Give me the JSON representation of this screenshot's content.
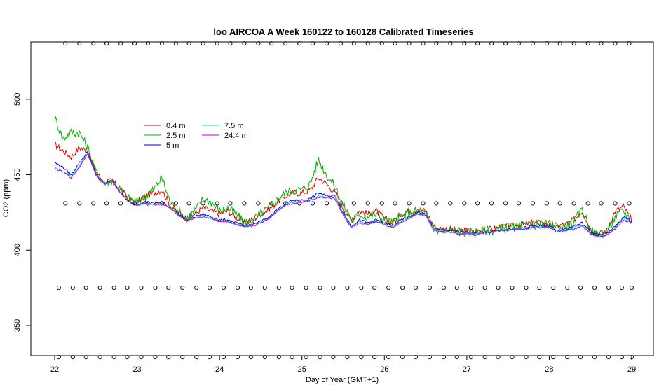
{
  "chart_data": {
    "type": "line",
    "title": "loo AIRCOA A  Week 160122 to 160128  Calibrated Timeseries",
    "xlabel": "Day of Year (GMT+1)",
    "ylabel": "CO2 (ppm)",
    "xlim": [
      22,
      29
    ],
    "ylim": [
      330,
      538
    ],
    "x_ticks": [
      22,
      23,
      24,
      25,
      26,
      27,
      28,
      29
    ],
    "y_ticks": [
      350,
      400,
      450,
      500
    ],
    "grid": false,
    "legend_placement": "top-left",
    "series": [
      {
        "name": "0.4 m",
        "color": "#e00000",
        "x": [
          22.0,
          22.1,
          22.2,
          22.3,
          22.4,
          22.5,
          22.6,
          22.7,
          22.8,
          22.9,
          23.0,
          23.1,
          23.2,
          23.3,
          23.4,
          23.5,
          23.6,
          23.7,
          23.8,
          23.9,
          24.0,
          24.1,
          24.2,
          24.3,
          24.4,
          24.5,
          24.6,
          24.7,
          24.8,
          24.9,
          25.0,
          25.1,
          25.2,
          25.3,
          25.4,
          25.5,
          25.6,
          25.7,
          25.8,
          25.9,
          26.0,
          26.1,
          26.2,
          26.3,
          26.4,
          26.5,
          26.6,
          26.7,
          26.8,
          26.9,
          27.0,
          27.1,
          27.2,
          27.3,
          27.4,
          27.5,
          27.6,
          27.7,
          27.8,
          27.9,
          28.0,
          28.1,
          28.2,
          28.3,
          28.4,
          28.5,
          28.6,
          28.7,
          28.8,
          28.9,
          29.0
        ],
        "values": [
          470,
          466,
          462,
          468,
          466,
          452,
          445,
          446,
          440,
          434,
          432,
          436,
          438,
          440,
          430,
          425,
          421,
          424,
          428,
          426,
          424,
          426,
          422,
          418,
          420,
          424,
          427,
          432,
          436,
          438,
          438,
          440,
          448,
          444,
          438,
          428,
          420,
          426,
          424,
          426,
          421,
          418,
          424,
          426,
          427,
          426,
          416,
          414,
          414,
          413,
          413,
          412,
          413,
          414,
          415,
          416,
          416,
          417,
          418,
          418,
          418,
          416,
          417,
          420,
          426,
          414,
          411,
          413,
          426,
          429,
          420
        ]
      },
      {
        "name": "2.5 m",
        "color": "#00b000",
        "x": [
          22.0,
          22.1,
          22.2,
          22.3,
          22.4,
          22.5,
          22.6,
          22.7,
          22.8,
          22.9,
          23.0,
          23.1,
          23.2,
          23.3,
          23.4,
          23.5,
          23.6,
          23.7,
          23.8,
          23.9,
          24.0,
          24.1,
          24.2,
          24.3,
          24.4,
          24.5,
          24.6,
          24.7,
          24.8,
          24.9,
          25.0,
          25.1,
          25.2,
          25.3,
          25.4,
          25.5,
          25.6,
          25.7,
          25.8,
          25.9,
          26.0,
          26.1,
          26.2,
          26.3,
          26.4,
          26.5,
          26.6,
          26.7,
          26.8,
          26.9,
          27.0,
          27.1,
          27.2,
          27.3,
          27.4,
          27.5,
          27.6,
          27.7,
          27.8,
          27.9,
          28.0,
          28.1,
          28.2,
          28.3,
          28.4,
          28.5,
          28.6,
          28.7,
          28.8,
          28.9,
          29.0
        ],
        "values": [
          488,
          474,
          478,
          478,
          468,
          452,
          445,
          446,
          440,
          434,
          432,
          436,
          440,
          448,
          432,
          426,
          421,
          426,
          434,
          432,
          426,
          428,
          424,
          418,
          420,
          424,
          428,
          434,
          438,
          440,
          440,
          444,
          460,
          450,
          442,
          430,
          420,
          424,
          422,
          424,
          420,
          418,
          422,
          424,
          426,
          424,
          415,
          413,
          413,
          412,
          412,
          412,
          413,
          413,
          414,
          415,
          415,
          416,
          417,
          417,
          417,
          415,
          416,
          418,
          428,
          413,
          410,
          412,
          422,
          426,
          419
        ]
      },
      {
        "name": "5 m",
        "color": "#0000e0",
        "x": [
          22.0,
          22.1,
          22.2,
          22.3,
          22.4,
          22.5,
          22.6,
          22.7,
          22.8,
          22.9,
          23.0,
          23.1,
          23.2,
          23.3,
          23.4,
          23.5,
          23.6,
          23.7,
          23.8,
          23.9,
          24.0,
          24.1,
          24.2,
          24.3,
          24.4,
          24.5,
          24.6,
          24.7,
          24.8,
          24.9,
          25.0,
          25.1,
          25.2,
          25.3,
          25.4,
          25.5,
          25.6,
          25.7,
          25.8,
          25.9,
          26.0,
          26.1,
          26.2,
          26.3,
          26.4,
          26.5,
          26.6,
          26.7,
          26.8,
          26.9,
          27.0,
          27.1,
          27.2,
          27.3,
          27.4,
          27.5,
          27.6,
          27.7,
          27.8,
          27.9,
          28.0,
          28.1,
          28.2,
          28.3,
          28.4,
          28.5,
          28.6,
          28.7,
          28.8,
          28.9,
          29.0
        ],
        "values": [
          458,
          455,
          450,
          458,
          465,
          450,
          444,
          446,
          438,
          432,
          430,
          432,
          431,
          432,
          428,
          424,
          420,
          422,
          424,
          422,
          420,
          420,
          418,
          416,
          417,
          419,
          422,
          427,
          431,
          433,
          433,
          434,
          438,
          436,
          436,
          425,
          416,
          420,
          418,
          420,
          418,
          416,
          420,
          422,
          425,
          424,
          414,
          413,
          413,
          412,
          412,
          411,
          412,
          412,
          413,
          414,
          414,
          415,
          416,
          416,
          416,
          413,
          414,
          416,
          418,
          412,
          410,
          411,
          416,
          422,
          419
        ]
      },
      {
        "name": "7.5 m",
        "color": "#00d8d8",
        "x": [
          22.0,
          22.1,
          22.2,
          22.3,
          22.4,
          22.5,
          22.6,
          22.7,
          22.8,
          22.9,
          23.0,
          23.1,
          23.2,
          23.3,
          23.4,
          23.5,
          23.6,
          23.7,
          23.8,
          23.9,
          24.0,
          24.1,
          24.2,
          24.3,
          24.4,
          24.5,
          24.6,
          24.7,
          24.8,
          24.9,
          25.0,
          25.1,
          25.2,
          25.3,
          25.4,
          25.5,
          25.6,
          25.7,
          25.8,
          25.9,
          26.0,
          26.1,
          26.2,
          26.3,
          26.4,
          26.5,
          26.6,
          26.7,
          26.8,
          26.9,
          27.0,
          27.1,
          27.2,
          27.3,
          27.4,
          27.5,
          27.6,
          27.7,
          27.8,
          27.9,
          28.0,
          28.1,
          28.2,
          28.3,
          28.4,
          28.5,
          28.6,
          28.7,
          28.8,
          28.9,
          29.0
        ],
        "values": [
          455,
          452,
          449,
          456,
          464,
          450,
          444,
          446,
          438,
          432,
          430,
          431,
          430,
          431,
          428,
          423,
          420,
          421,
          423,
          421,
          419,
          419,
          417,
          416,
          416,
          418,
          421,
          426,
          430,
          432,
          432,
          433,
          436,
          435,
          435,
          424,
          415,
          419,
          417,
          419,
          417,
          415,
          419,
          421,
          424,
          423,
          414,
          412,
          412,
          411,
          411,
          411,
          412,
          412,
          413,
          414,
          414,
          414,
          415,
          415,
          415,
          413,
          413,
          415,
          417,
          411,
          409,
          410,
          415,
          421,
          418
        ]
      },
      {
        "name": "24.4 m",
        "color": "#c800c8",
        "x": [
          22.0,
          22.1,
          22.2,
          22.3,
          22.4,
          22.5,
          22.6,
          22.7,
          22.8,
          22.9,
          23.0,
          23.1,
          23.2,
          23.3,
          23.4,
          23.5,
          23.6,
          23.7,
          23.8,
          23.9,
          24.0,
          24.1,
          24.2,
          24.3,
          24.4,
          24.5,
          24.6,
          24.7,
          24.8,
          24.9,
          25.0,
          25.1,
          25.2,
          25.3,
          25.4,
          25.5,
          25.6,
          25.7,
          25.8,
          25.9,
          26.0,
          26.1,
          26.2,
          26.3,
          26.4,
          26.5,
          26.6,
          26.7,
          26.8,
          26.9,
          27.0,
          27.1,
          27.2,
          27.3,
          27.4,
          27.5,
          27.6,
          27.7,
          27.8,
          27.9,
          28.0,
          28.1,
          28.2,
          28.3,
          28.4,
          28.5,
          28.6,
          28.7,
          28.8,
          28.9,
          29.0
        ],
        "values": [
          454,
          452,
          448,
          455,
          464,
          450,
          444,
          446,
          438,
          432,
          430,
          431,
          430,
          431,
          428,
          423,
          420,
          421,
          422,
          421,
          419,
          419,
          417,
          415,
          416,
          418,
          421,
          426,
          430,
          431,
          432,
          433,
          435,
          435,
          434,
          423,
          415,
          418,
          417,
          419,
          417,
          415,
          418,
          421,
          424,
          423,
          413,
          412,
          412,
          411,
          411,
          410,
          412,
          412,
          413,
          413,
          414,
          414,
          415,
          415,
          415,
          412,
          413,
          414,
          416,
          411,
          409,
          410,
          414,
          420,
          418
        ]
      }
    ],
    "calibration_markers": [
      {
        "y": 537,
        "x": [
          22.13,
          22.3,
          22.47,
          22.63,
          22.8,
          22.97,
          23.13,
          23.3,
          23.47,
          23.63,
          23.8,
          23.97,
          24.13,
          24.3,
          24.47,
          24.63,
          24.8,
          24.97,
          25.13,
          25.3,
          25.47,
          25.63,
          25.8,
          25.97,
          26.13,
          26.3,
          26.47,
          26.63,
          26.8,
          26.97,
          27.13,
          27.3,
          27.47,
          27.63,
          27.8,
          27.97,
          28.13,
          28.3,
          28.47,
          28.63,
          28.8,
          28.97
        ]
      },
      {
        "y": 431,
        "x": [
          22.13,
          22.3,
          22.47,
          22.63,
          22.8,
          22.97,
          23.13,
          23.3,
          23.47,
          23.63,
          23.8,
          23.97,
          24.13,
          24.3,
          24.47,
          24.63,
          24.8,
          24.97,
          25.13,
          25.3,
          25.47,
          25.63,
          25.8,
          25.97,
          26.13,
          26.3,
          26.47,
          26.63,
          26.8,
          26.97,
          27.13,
          27.3,
          27.47,
          27.63,
          27.8,
          27.97,
          28.13,
          28.3,
          28.47,
          28.63,
          28.8,
          28.97
        ]
      },
      {
        "y": 375,
        "x": [
          22.05,
          22.22,
          22.38,
          22.55,
          22.72,
          22.88,
          23.05,
          23.22,
          23.38,
          23.55,
          23.72,
          23.88,
          24.05,
          24.22,
          24.38,
          24.55,
          24.72,
          24.88,
          25.05,
          25.22,
          25.38,
          25.55,
          25.72,
          25.88,
          26.05,
          26.22,
          26.38,
          26.55,
          26.72,
          26.88,
          27.05,
          27.22,
          27.38,
          27.55,
          27.72,
          27.88,
          28.05,
          28.22,
          28.38,
          28.55,
          28.72,
          28.88,
          29.0
        ]
      },
      {
        "y": 329,
        "x": [
          22.05,
          22.22,
          22.38,
          22.55,
          22.72,
          22.88,
          23.05,
          23.22,
          23.38,
          23.55,
          23.72,
          23.88,
          24.05,
          24.22,
          24.38,
          24.55,
          24.72,
          24.88,
          25.05,
          25.22,
          25.38,
          25.55,
          25.72,
          25.88,
          26.05,
          26.22,
          26.38,
          26.55,
          26.72,
          26.88,
          27.05,
          27.22,
          27.38,
          27.55,
          27.72,
          27.88,
          28.05,
          28.22,
          28.38,
          28.55,
          28.72,
          28.88,
          29.0
        ]
      }
    ]
  }
}
